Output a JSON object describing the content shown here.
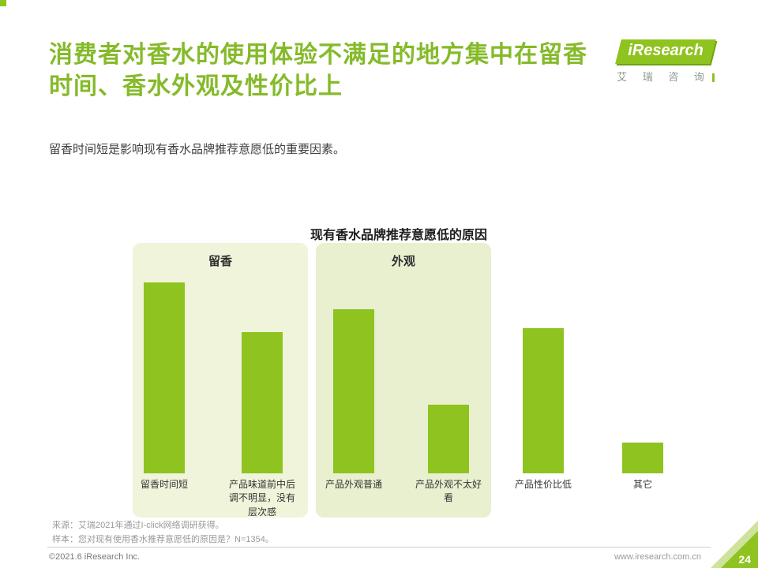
{
  "page": {
    "title_line1": "消费者对香水的使用体验不满足的地方集中在留香",
    "title_line2": "时间、香水外观及性价比上",
    "subtitle": "留香时间短是影响现有香水品牌推荐意愿低的重要因素。",
    "page_number": "24"
  },
  "logo": {
    "brand": "iResearch",
    "brand_cn": "艾 瑞 咨 询"
  },
  "chart_data": {
    "type": "bar",
    "title": "现有香水品牌推荐意愿低的原因",
    "categories": [
      "留香时间短",
      "产品味道前中后调不明显，没有层次感",
      "产品外观普通",
      "产品外观不太好看",
      "产品性价比低",
      "其它"
    ],
    "values": [
      50,
      37,
      43,
      18,
      38,
      8
    ],
    "ylim": [
      0,
      50
    ],
    "groups": [
      {
        "label": "留香",
        "bars": [
          0,
          1
        ]
      },
      {
        "label": "外观",
        "bars": [
          2,
          3
        ]
      }
    ],
    "bar_color": "#8fc31f",
    "legend": "none",
    "grid": "off"
  },
  "footer": {
    "source": "来源：艾瑞2021年通过I-click网络调研获得。",
    "sample": "样本：您对现有使用香水推荐意愿低的原因是？N=1354。",
    "copyright": "©2021.6 iResearch Inc.",
    "website": "www.iresearch.com.cn"
  }
}
